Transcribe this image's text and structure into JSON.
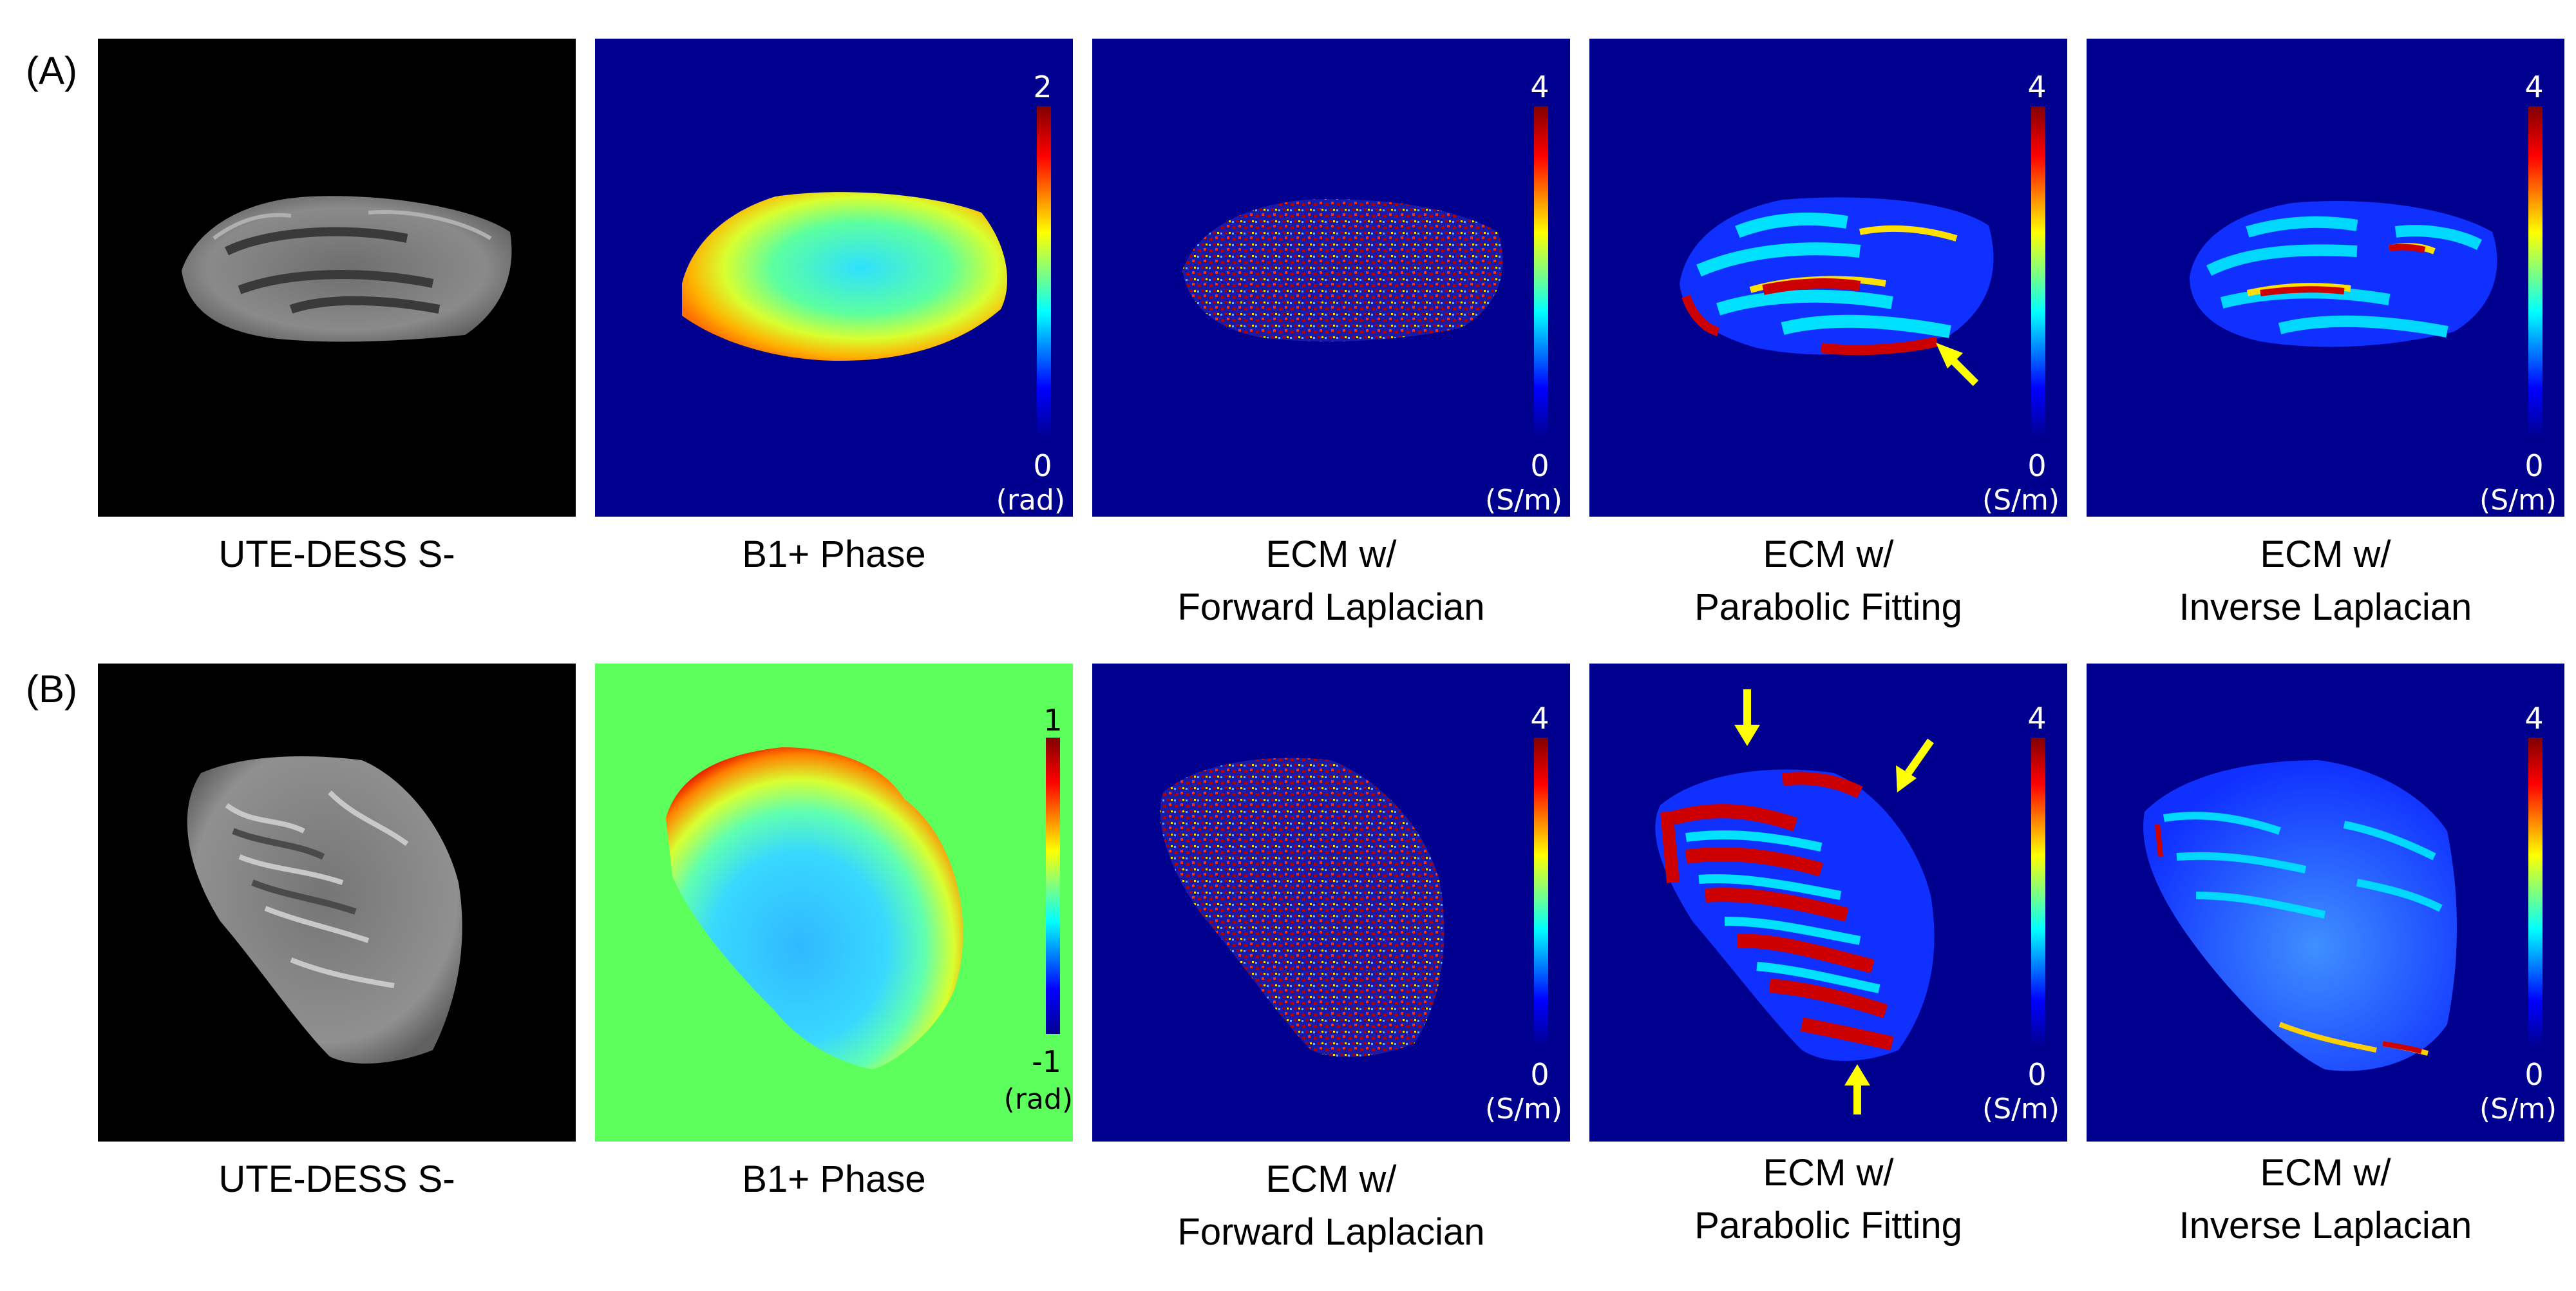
{
  "rows": [
    {
      "label": "(A)",
      "panels": [
        {
          "caption_lines": [
            "UTE-DESS S-"
          ]
        },
        {
          "caption_lines": [
            "B1+ Phase"
          ],
          "colorbar": {
            "max": "2",
            "min": "0",
            "unit": "(rad)"
          }
        },
        {
          "caption_lines": [
            "ECM w/",
            "Forward Laplacian"
          ],
          "colorbar": {
            "max": "4",
            "min": "0",
            "unit": "(S/m)"
          }
        },
        {
          "caption_lines": [
            "ECM w/",
            "Parabolic Fitting"
          ],
          "colorbar": {
            "max": "4",
            "min": "0",
            "unit": "(S/m)"
          }
        },
        {
          "caption_lines": [
            "ECM w/",
            "Inverse Laplacian"
          ],
          "colorbar": {
            "max": "4",
            "min": "0",
            "unit": "(S/m)"
          }
        }
      ]
    },
    {
      "label": "(B)",
      "panels": [
        {
          "caption_lines": [
            "UTE-DESS S-"
          ]
        },
        {
          "caption_lines": [
            "B1+ Phase"
          ],
          "colorbar": {
            "max": "1",
            "min": "-1",
            "unit": "(rad)"
          }
        },
        {
          "caption_lines": [
            "ECM w/",
            "Forward Laplacian"
          ],
          "colorbar": {
            "max": "4",
            "min": "0",
            "unit": "(S/m)"
          }
        },
        {
          "caption_lines": [
            "ECM w/",
            "Parabolic Fitting"
          ],
          "colorbar": {
            "max": "4",
            "min": "0",
            "unit": "(S/m)"
          }
        },
        {
          "caption_lines": [
            "ECM w/",
            "Inverse Laplacian"
          ],
          "colorbar": {
            "max": "4",
            "min": "0",
            "unit": "(S/m)"
          }
        }
      ]
    }
  ],
  "colors": {
    "map_background": "#00008f",
    "phase_background_b": "#5cff5c",
    "arrow": "#ffff00",
    "jet_stops": [
      "#00008f",
      "#0000ff",
      "#00ffff",
      "#ffff00",
      "#ff0000",
      "#800000"
    ]
  }
}
